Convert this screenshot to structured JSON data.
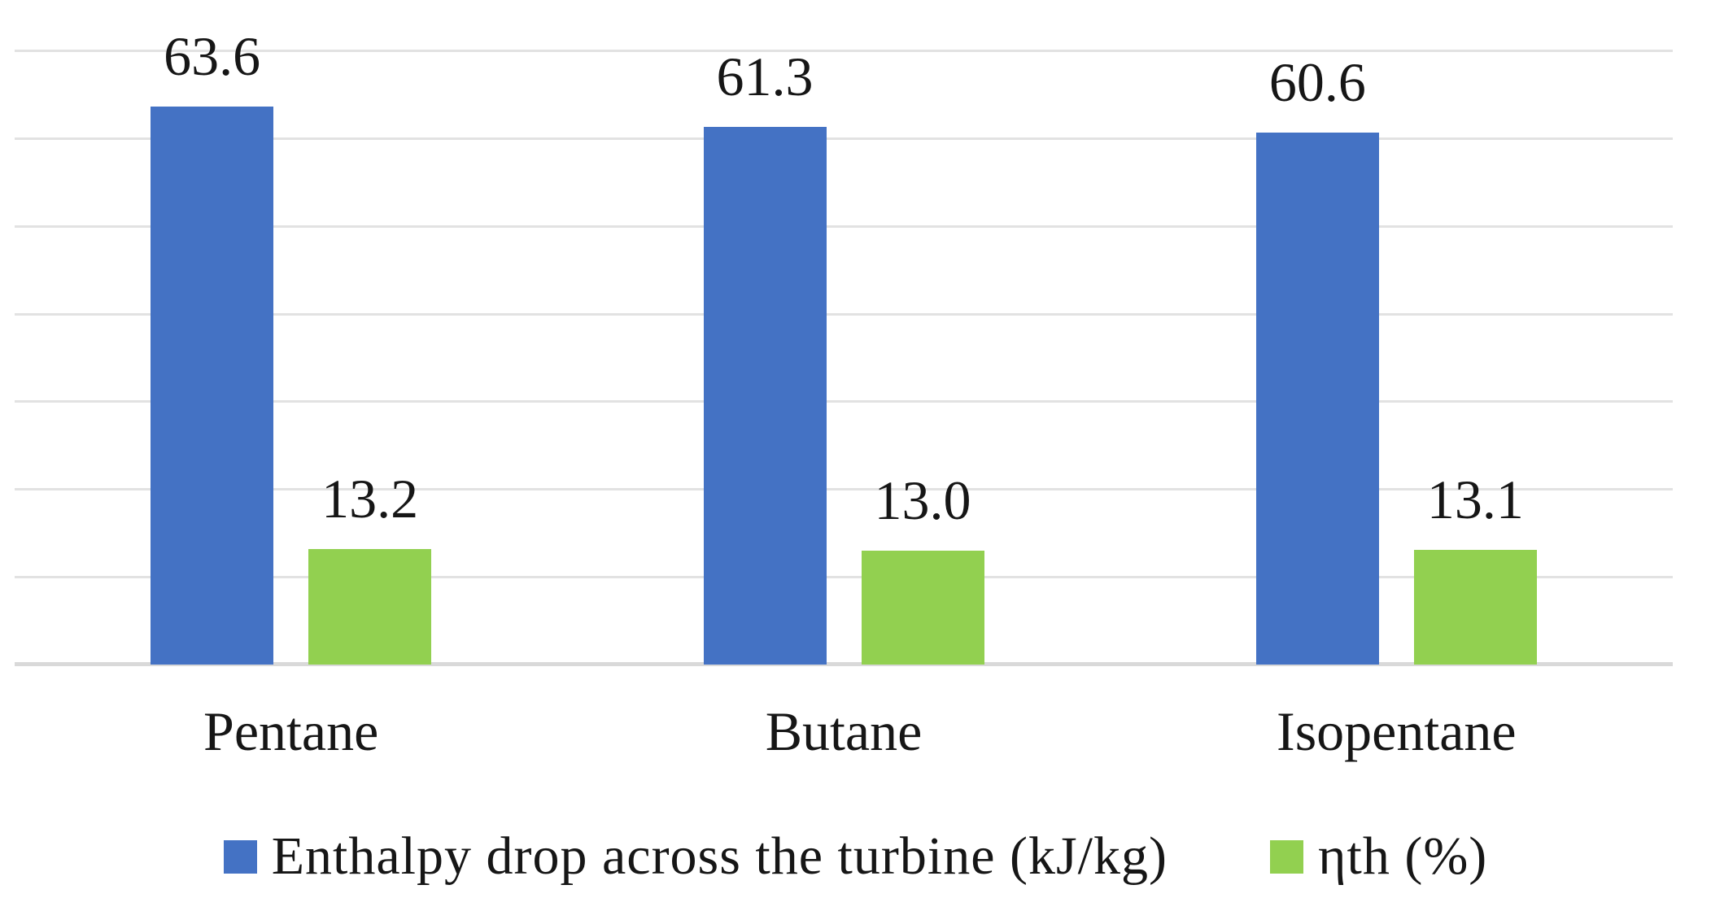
{
  "chart_data": {
    "type": "bar",
    "categories": [
      "Pentane",
      "Butane",
      "Isopentane"
    ],
    "series": [
      {
        "name": "Enthalpy drop across the turbine (kJ/kg)",
        "color": "#4472C4",
        "values": [
          63.6,
          61.3,
          60.6
        ],
        "labels": [
          "63.6",
          "61.3",
          "60.6"
        ]
      },
      {
        "name": "ηth (%)",
        "color": "#92D050",
        "values": [
          13.2,
          13.0,
          13.1
        ],
        "labels": [
          "13.2",
          "13.0",
          "13.1"
        ]
      }
    ],
    "title": "",
    "xlabel": "",
    "ylabel": "",
    "ylim": [
      0,
      70
    ],
    "gridline_step": 10,
    "grid": true,
    "legend_position": "bottom"
  },
  "colors": {
    "gridline": "#E2E2E2",
    "axis_line": "#D9D9D9",
    "text": "#161616"
  }
}
